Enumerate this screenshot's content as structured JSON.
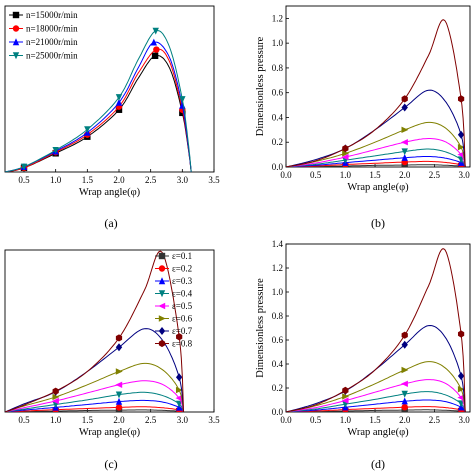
{
  "panel_labels": [
    "(a)",
    "(b)",
    "(c)",
    "(d)"
  ],
  "chart_data": [
    {
      "panel": "(a)",
      "type": "line",
      "xlabel": "Wrap angle(φ)",
      "ylabel": "",
      "xlim": [
        0.2,
        3.5
      ],
      "ylim": [
        0,
        1.6
      ],
      "xticks": [
        "0.5",
        "1.0",
        "1.5",
        "2.0",
        "2.5",
        "3.0",
        "3.5"
      ],
      "yticks": [],
      "grid": false,
      "legend": "top-left",
      "series": [
        {
          "name": "n=15000r/min",
          "color": "#000000",
          "marker": "square",
          "x": [
            0.2,
            0.5,
            1.0,
            1.5,
            2.0,
            2.3,
            2.57,
            2.8,
            3.0,
            3.1,
            3.14
          ],
          "y": [
            0.0,
            0.04,
            0.18,
            0.34,
            0.6,
            0.9,
            1.12,
            1.0,
            0.57,
            0.2,
            0.0
          ]
        },
        {
          "name": "n=18000r/min",
          "color": "#ff0000",
          "marker": "circle",
          "x": [
            0.2,
            0.5,
            1.0,
            1.5,
            2.0,
            2.3,
            2.59,
            2.8,
            3.0,
            3.1,
            3.14
          ],
          "y": [
            0.0,
            0.04,
            0.19,
            0.36,
            0.63,
            0.95,
            1.18,
            1.06,
            0.6,
            0.21,
            0.0
          ]
        },
        {
          "name": "n=21000r/min",
          "color": "#0000ff",
          "marker": "triangle",
          "x": [
            0.2,
            0.5,
            1.0,
            1.5,
            2.0,
            2.3,
            2.55,
            2.8,
            3.0,
            3.1,
            3.14
          ],
          "y": [
            0.0,
            0.05,
            0.2,
            0.38,
            0.67,
            1.0,
            1.25,
            1.1,
            0.64,
            0.22,
            0.0
          ]
        },
        {
          "name": "n=25000r/min",
          "color": "#008080",
          "marker": "triangle-down",
          "x": [
            0.2,
            0.5,
            1.0,
            1.5,
            2.0,
            2.3,
            2.58,
            2.8,
            3.0,
            3.1,
            3.14
          ],
          "y": [
            0.0,
            0.05,
            0.21,
            0.41,
            0.72,
            1.08,
            1.36,
            1.2,
            0.7,
            0.25,
            0.0
          ]
        }
      ]
    },
    {
      "panel": "(b)",
      "type": "line",
      "xlabel": "Wrap angle(φ)",
      "ylabel": "Dimensionless pressure",
      "xlim": [
        0,
        3.1
      ],
      "ylim": [
        0,
        1.3
      ],
      "xticks": [
        "0.0",
        "0.5",
        "1.0",
        "1.5",
        "2.0",
        "2.5",
        "3.0"
      ],
      "yticks": [
        "0.0",
        "0.2",
        "0.4",
        "0.6",
        "0.8",
        "1.0",
        "1.2"
      ],
      "grid": false,
      "legend": "none",
      "series": [
        {
          "name": "ε=0.1",
          "color": "#333333",
          "marker": "square",
          "x": [
            0,
            0.5,
            1.0,
            1.5,
            2.0,
            2.4,
            2.7,
            2.95,
            3.02
          ],
          "y": [
            0,
            0.003,
            0.008,
            0.013,
            0.016,
            0.018,
            0.014,
            0.007,
            0
          ]
        },
        {
          "name": "ε=0.2",
          "color": "#ff0000",
          "marker": "circle",
          "x": [
            0,
            0.5,
            1.0,
            1.5,
            2.0,
            2.4,
            2.7,
            2.95,
            3.02
          ],
          "y": [
            0,
            0.008,
            0.02,
            0.03,
            0.04,
            0.045,
            0.036,
            0.018,
            0
          ]
        },
        {
          "name": "ε=0.3",
          "color": "#0000ff",
          "marker": "triangle",
          "x": [
            0,
            0.5,
            1.0,
            1.5,
            2.0,
            2.4,
            2.7,
            2.95,
            3.02
          ],
          "y": [
            0,
            0.014,
            0.035,
            0.055,
            0.075,
            0.085,
            0.07,
            0.035,
            0
          ]
        },
        {
          "name": "ε=0.4",
          "color": "#008080",
          "marker": "triangle-down",
          "x": [
            0,
            0.5,
            1.0,
            1.5,
            2.0,
            2.4,
            2.7,
            2.95,
            3.02
          ],
          "y": [
            0,
            0.022,
            0.055,
            0.09,
            0.125,
            0.145,
            0.12,
            0.06,
            0
          ]
        },
        {
          "name": "ε=0.5",
          "color": "#ff00ff",
          "marker": "triangle-left",
          "x": [
            0,
            0.5,
            1.0,
            1.5,
            2.0,
            2.4,
            2.7,
            2.95,
            3.02
          ],
          "y": [
            0,
            0.032,
            0.08,
            0.14,
            0.2,
            0.23,
            0.2,
            0.1,
            0
          ]
        },
        {
          "name": "ε=0.6",
          "color": "#808000",
          "marker": "triangle-right",
          "x": [
            0,
            0.5,
            1.0,
            1.5,
            2.0,
            2.4,
            2.7,
            2.95,
            3.02
          ],
          "y": [
            0,
            0.045,
            0.11,
            0.2,
            0.3,
            0.36,
            0.31,
            0.16,
            0
          ]
        },
        {
          "name": "ε=0.7",
          "color": "#000080",
          "marker": "diamond",
          "x": [
            0,
            0.5,
            1.0,
            1.5,
            2.0,
            2.4,
            2.7,
            2.95,
            3.02
          ],
          "y": [
            0,
            0.06,
            0.15,
            0.3,
            0.48,
            0.62,
            0.52,
            0.26,
            0
          ]
        },
        {
          "name": "ε=0.8",
          "color": "#800000",
          "marker": "hexagon",
          "x": [
            0,
            0.5,
            1.0,
            1.5,
            2.0,
            2.4,
            2.68,
            2.95,
            3.02
          ],
          "y": [
            0,
            0.05,
            0.15,
            0.3,
            0.55,
            0.9,
            1.18,
            0.55,
            0
          ]
        }
      ]
    },
    {
      "panel": "(c)",
      "type": "line",
      "xlabel": "Wrap angle(φ)",
      "ylabel": "",
      "xlim": [
        0.2,
        3.5
      ],
      "ylim": [
        0,
        1.4
      ],
      "xticks": [
        "0.5",
        "1.0",
        "1.5",
        "2.0",
        "2.5",
        "3.0",
        "3.5"
      ],
      "yticks": [],
      "grid": false,
      "legend": "top-left",
      "series": [
        {
          "name": "ε=0.1",
          "color": "#333333",
          "marker": "square",
          "x": [
            0.2,
            0.5,
            1.0,
            1.5,
            2.0,
            2.4,
            2.7,
            2.95,
            3.02
          ],
          "y": [
            0,
            0.003,
            0.008,
            0.013,
            0.016,
            0.018,
            0.014,
            0.007,
            0
          ]
        },
        {
          "name": "ε=0.2",
          "color": "#ff0000",
          "marker": "circle",
          "x": [
            0.2,
            0.5,
            1.0,
            1.5,
            2.0,
            2.4,
            2.7,
            2.95,
            3.02
          ],
          "y": [
            0,
            0.008,
            0.02,
            0.03,
            0.04,
            0.045,
            0.036,
            0.018,
            0
          ]
        },
        {
          "name": "ε=0.3",
          "color": "#0000ff",
          "marker": "triangle",
          "x": [
            0.2,
            0.5,
            1.0,
            1.5,
            2.0,
            2.4,
            2.7,
            2.95,
            3.02
          ],
          "y": [
            0,
            0.016,
            0.04,
            0.065,
            0.09,
            0.1,
            0.085,
            0.04,
            0
          ]
        },
        {
          "name": "ε=0.4",
          "color": "#008080",
          "marker": "triangle-down",
          "x": [
            0.2,
            0.5,
            1.0,
            1.5,
            2.0,
            2.4,
            2.7,
            2.95,
            3.02
          ],
          "y": [
            0,
            0.025,
            0.065,
            0.105,
            0.15,
            0.17,
            0.14,
            0.07,
            0
          ]
        },
        {
          "name": "ε=0.5",
          "color": "#ff00ff",
          "marker": "triangle-left",
          "x": [
            0.2,
            0.5,
            1.0,
            1.5,
            2.0,
            2.4,
            2.7,
            2.95,
            3.02
          ],
          "y": [
            0,
            0.037,
            0.095,
            0.165,
            0.235,
            0.27,
            0.235,
            0.12,
            0
          ]
        },
        {
          "name": "ε=0.6",
          "color": "#808000",
          "marker": "triangle-right",
          "x": [
            0.2,
            0.5,
            1.0,
            1.5,
            2.0,
            2.4,
            2.7,
            2.95,
            3.02
          ],
          "y": [
            0,
            0.052,
            0.13,
            0.235,
            0.35,
            0.42,
            0.36,
            0.19,
            0
          ]
        },
        {
          "name": "ε=0.7",
          "color": "#000080",
          "marker": "diamond",
          "x": [
            0.2,
            0.5,
            1.0,
            1.5,
            2.0,
            2.4,
            2.7,
            2.95,
            3.02
          ],
          "y": [
            0,
            0.07,
            0.175,
            0.35,
            0.56,
            0.72,
            0.61,
            0.3,
            0
          ]
        },
        {
          "name": "ε=0.8",
          "color": "#800000",
          "marker": "hexagon",
          "x": [
            0.2,
            0.5,
            1.0,
            1.5,
            2.0,
            2.4,
            2.68,
            2.95,
            3.02
          ],
          "y": [
            0,
            0.06,
            0.18,
            0.35,
            0.64,
            1.05,
            1.38,
            0.65,
            0
          ]
        }
      ]
    },
    {
      "panel": "(d)",
      "type": "line",
      "xlabel": "Wrap angle(φ)",
      "ylabel": "Dimensionless pressure",
      "xlim": [
        0,
        3.1
      ],
      "ylim": [
        0,
        1.4
      ],
      "xticks": [
        "0.0",
        "0.5",
        "1.0",
        "1.5",
        "2.0",
        "2.5",
        "3.0"
      ],
      "yticks": [
        "0.0",
        "0.2",
        "0.4",
        "0.6",
        "0.8",
        "1.0",
        "1.2",
        "1.4"
      ],
      "grid": false,
      "legend": "none",
      "series": [
        {
          "name": "ε=0.1",
          "color": "#333333",
          "marker": "square",
          "x": [
            0,
            0.5,
            1.0,
            1.5,
            2.0,
            2.4,
            2.7,
            2.95,
            3.02
          ],
          "y": [
            0,
            0.003,
            0.008,
            0.013,
            0.016,
            0.018,
            0.014,
            0.007,
            0
          ]
        },
        {
          "name": "ε=0.2",
          "color": "#ff0000",
          "marker": "circle",
          "x": [
            0,
            0.5,
            1.0,
            1.5,
            2.0,
            2.4,
            2.7,
            2.95,
            3.02
          ],
          "y": [
            0,
            0.008,
            0.02,
            0.03,
            0.04,
            0.045,
            0.036,
            0.018,
            0
          ]
        },
        {
          "name": "ε=0.3",
          "color": "#0000ff",
          "marker": "triangle",
          "x": [
            0,
            0.5,
            1.0,
            1.5,
            2.0,
            2.4,
            2.7,
            2.95,
            3.02
          ],
          "y": [
            0,
            0.016,
            0.04,
            0.065,
            0.09,
            0.1,
            0.085,
            0.04,
            0
          ]
        },
        {
          "name": "ε=0.4",
          "color": "#008080",
          "marker": "triangle-down",
          "x": [
            0,
            0.5,
            1.0,
            1.5,
            2.0,
            2.4,
            2.7,
            2.95,
            3.02
          ],
          "y": [
            0,
            0.025,
            0.065,
            0.105,
            0.15,
            0.17,
            0.14,
            0.07,
            0
          ]
        },
        {
          "name": "ε=0.5",
          "color": "#ff00ff",
          "marker": "triangle-left",
          "x": [
            0,
            0.5,
            1.0,
            1.5,
            2.0,
            2.4,
            2.7,
            2.95,
            3.02
          ],
          "y": [
            0,
            0.037,
            0.095,
            0.165,
            0.235,
            0.27,
            0.235,
            0.12,
            0
          ]
        },
        {
          "name": "ε=0.6",
          "color": "#808000",
          "marker": "triangle-right",
          "x": [
            0,
            0.5,
            1.0,
            1.5,
            2.0,
            2.4,
            2.7,
            2.95,
            3.02
          ],
          "y": [
            0,
            0.052,
            0.13,
            0.235,
            0.35,
            0.42,
            0.36,
            0.19,
            0
          ]
        },
        {
          "name": "ε=0.7",
          "color": "#000080",
          "marker": "diamond",
          "x": [
            0,
            0.5,
            1.0,
            1.5,
            2.0,
            2.4,
            2.7,
            2.95,
            3.02
          ],
          "y": [
            0,
            0.07,
            0.175,
            0.35,
            0.56,
            0.72,
            0.61,
            0.3,
            0
          ]
        },
        {
          "name": "ε=0.8",
          "color": "#800000",
          "marker": "hexagon",
          "x": [
            0,
            0.5,
            1.0,
            1.5,
            2.0,
            2.4,
            2.68,
            2.95,
            3.02
          ],
          "y": [
            0,
            0.06,
            0.18,
            0.35,
            0.64,
            1.05,
            1.35,
            0.65,
            0
          ]
        }
      ]
    }
  ]
}
